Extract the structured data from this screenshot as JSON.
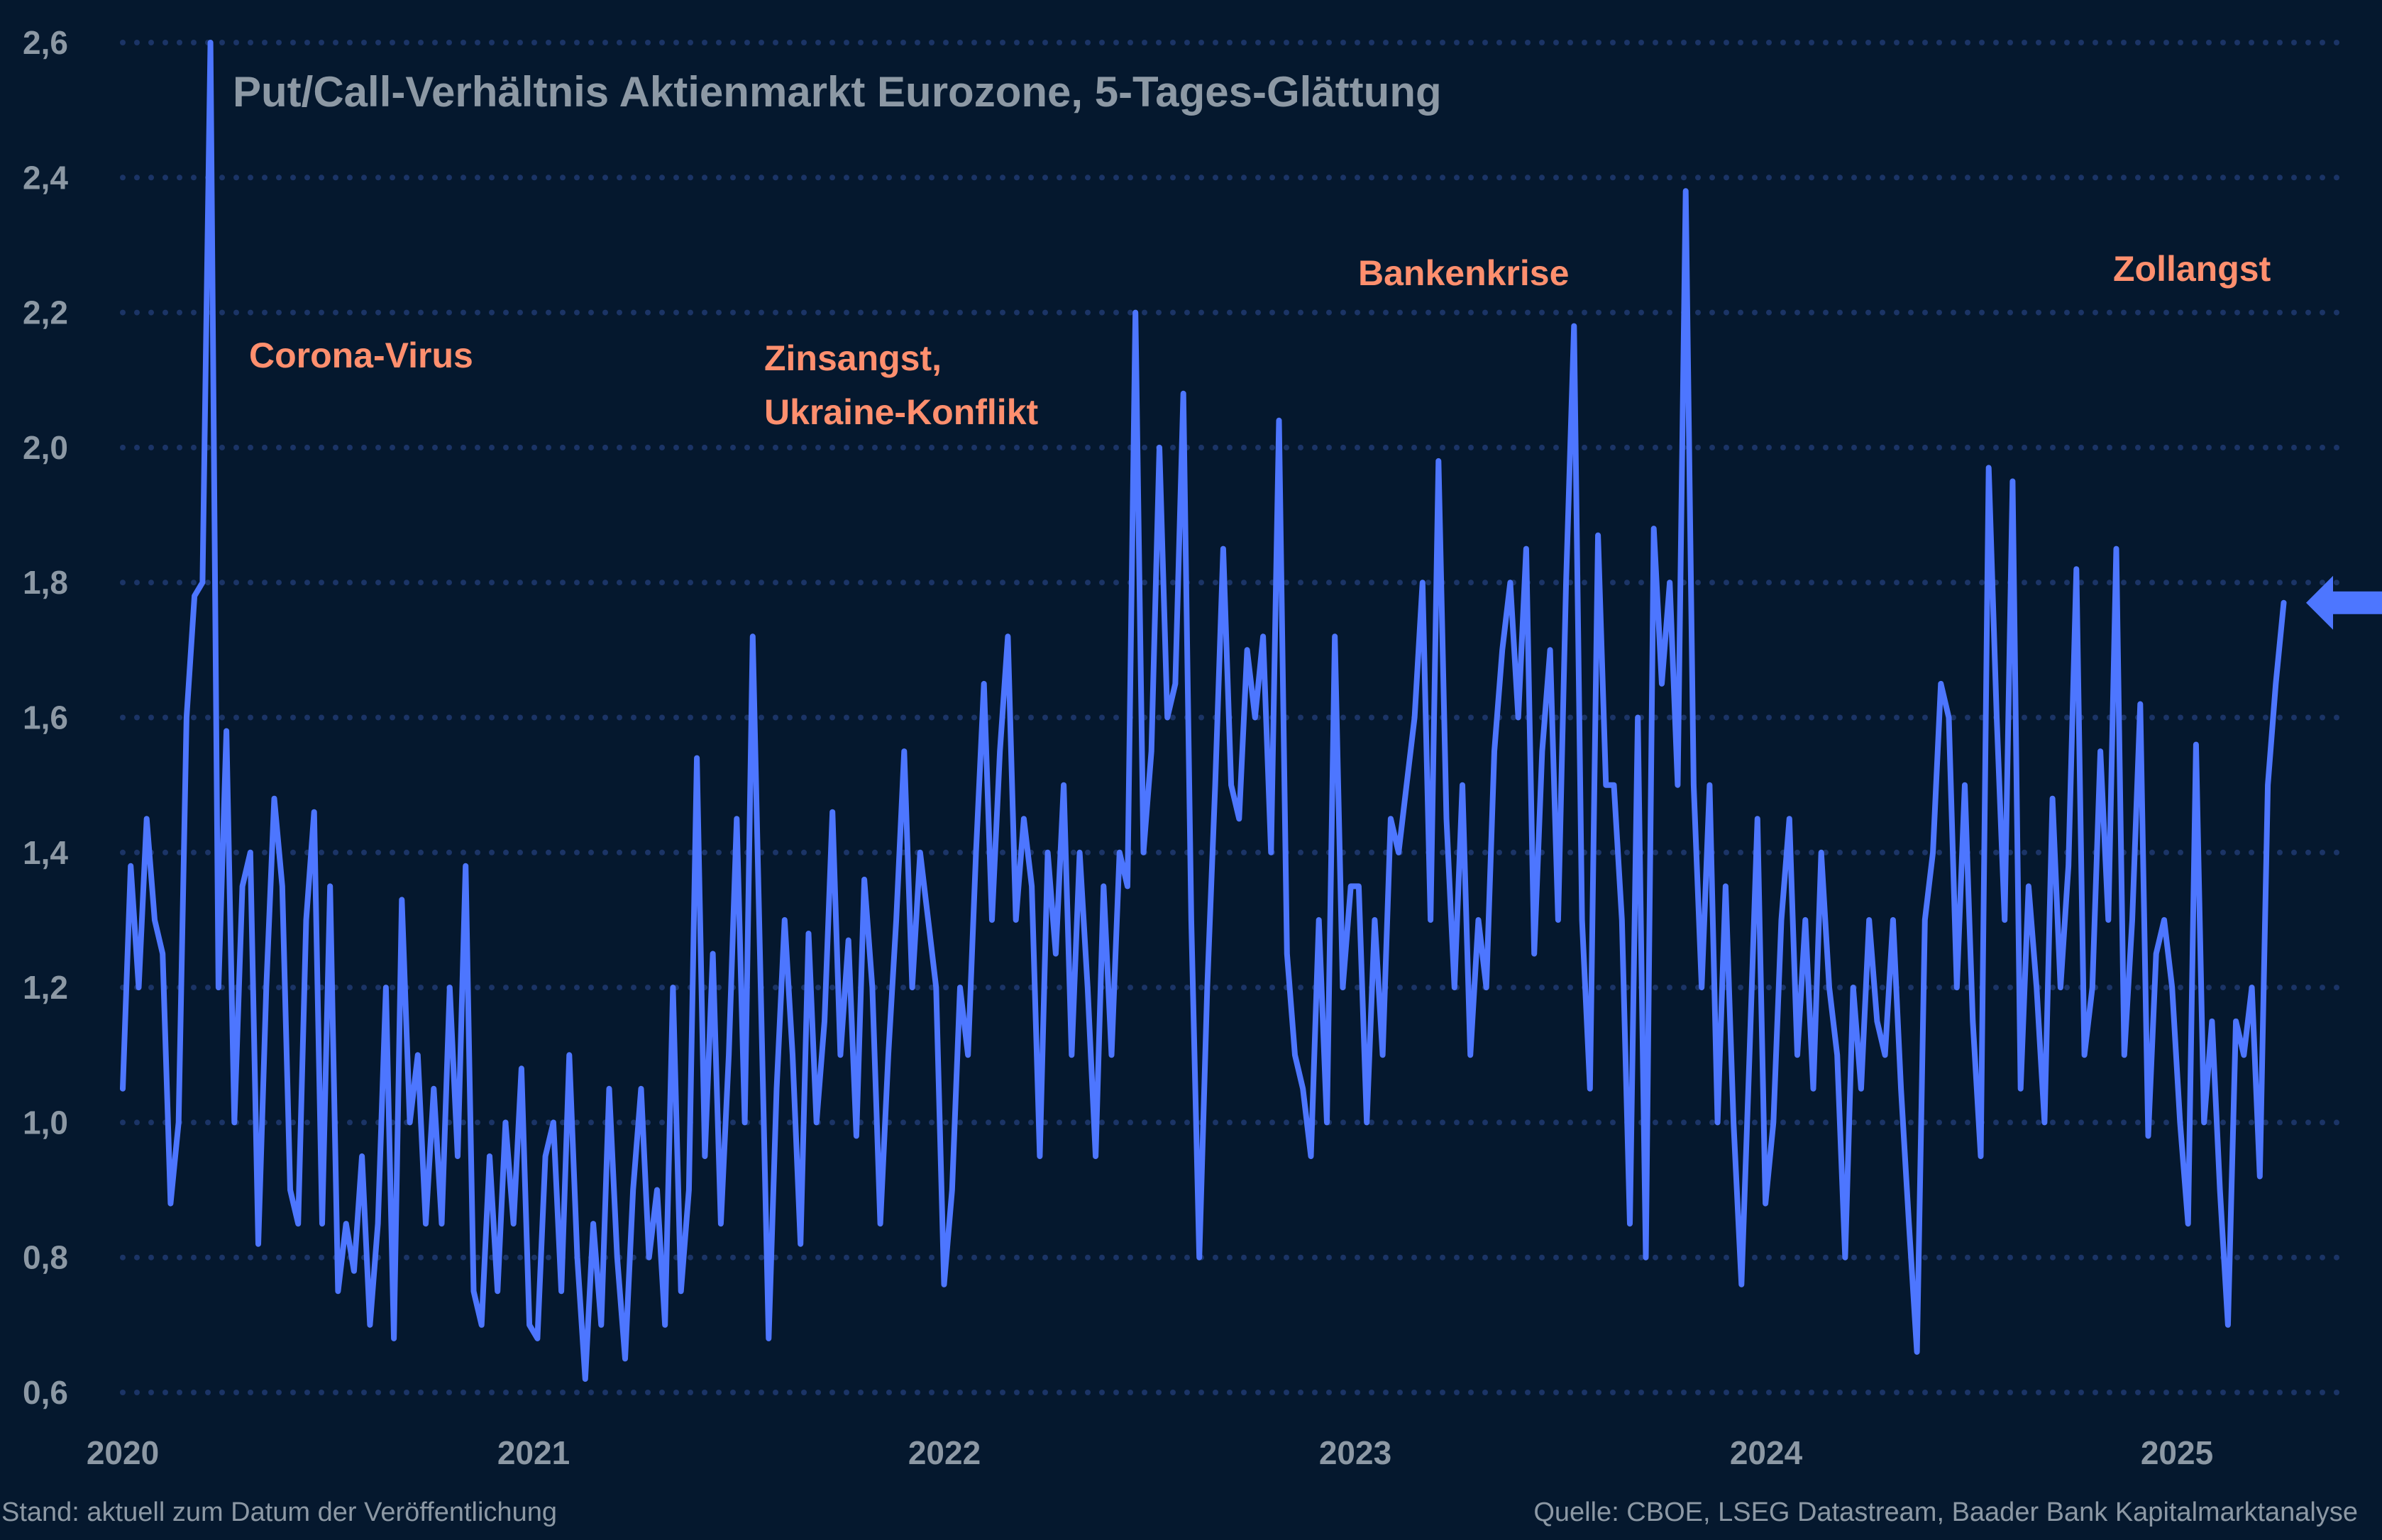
{
  "colors": {
    "background": "#05182e",
    "line": "#4d76ff",
    "grid": "#1b3466",
    "text": "#8c98a4",
    "annotation": "#ff8f6e"
  },
  "chart_data": {
    "type": "line",
    "title": "Put/Call-Verhältnis Aktienmarkt Eurozone, 5-Tages-Glättung",
    "xlabel": "",
    "ylabel": "",
    "x_ticks": [
      "2020",
      "2021",
      "2022",
      "2023",
      "2024",
      "2025"
    ],
    "y_ticks": [
      "0,6",
      "0,8",
      "1,0",
      "1,2",
      "1,4",
      "1,6",
      "1,8",
      "2,0",
      "2,2",
      "2,4",
      "2,6"
    ],
    "ylim": [
      0.6,
      2.6
    ],
    "xlim": [
      2020.0,
      2025.6
    ],
    "grid": "horizontal-dotted",
    "x_range": [
      2020.0,
      2025.26
    ],
    "sampling": "weekly",
    "values": [
      1.05,
      1.38,
      1.2,
      1.45,
      1.3,
      1.25,
      0.88,
      1.0,
      1.6,
      1.78,
      1.8,
      2.6,
      1.2,
      1.58,
      1.0,
      1.35,
      1.4,
      0.82,
      1.2,
      1.48,
      1.35,
      0.9,
      0.85,
      1.3,
      1.46,
      0.85,
      1.35,
      0.75,
      0.85,
      0.78,
      0.95,
      0.7,
      0.85,
      1.2,
      0.68,
      1.33,
      1.0,
      1.1,
      0.85,
      1.05,
      0.85,
      1.2,
      0.95,
      1.38,
      0.75,
      0.7,
      0.95,
      0.75,
      1.0,
      0.85,
      1.08,
      0.7,
      0.68,
      0.95,
      1.0,
      0.75,
      1.1,
      0.8,
      0.62,
      0.85,
      0.7,
      1.05,
      0.8,
      0.65,
      0.9,
      1.05,
      0.8,
      0.9,
      0.7,
      1.2,
      0.75,
      0.9,
      1.54,
      0.95,
      1.25,
      0.85,
      1.1,
      1.45,
      1.0,
      1.72,
      1.2,
      0.68,
      1.05,
      1.3,
      1.1,
      0.82,
      1.28,
      1.0,
      1.15,
      1.46,
      1.1,
      1.27,
      0.98,
      1.36,
      1.2,
      0.85,
      1.1,
      1.3,
      1.55,
      1.2,
      1.4,
      1.3,
      1.2,
      0.76,
      0.9,
      1.2,
      1.1,
      1.4,
      1.65,
      1.3,
      1.55,
      1.72,
      1.3,
      1.45,
      1.35,
      0.95,
      1.4,
      1.25,
      1.5,
      1.1,
      1.4,
      1.2,
      0.95,
      1.35,
      1.1,
      1.4,
      1.35,
      2.2,
      1.4,
      1.55,
      2.0,
      1.6,
      1.65,
      2.08,
      1.3,
      0.8,
      1.2,
      1.5,
      1.85,
      1.5,
      1.45,
      1.7,
      1.6,
      1.72,
      1.4,
      2.04,
      1.25,
      1.1,
      1.05,
      0.95,
      1.3,
      1.0,
      1.72,
      1.2,
      1.35,
      1.35,
      1.0,
      1.3,
      1.1,
      1.45,
      1.4,
      1.5,
      1.6,
      1.8,
      1.3,
      1.98,
      1.45,
      1.2,
      1.5,
      1.1,
      1.3,
      1.2,
      1.55,
      1.7,
      1.8,
      1.6,
      1.85,
      1.25,
      1.55,
      1.7,
      1.3,
      1.8,
      2.18,
      1.3,
      1.05,
      1.87,
      1.5,
      1.5,
      1.3,
      0.85,
      1.6,
      0.8,
      1.88,
      1.65,
      1.8,
      1.5,
      2.38,
      1.5,
      1.2,
      1.5,
      1.0,
      1.35,
      1.0,
      0.76,
      1.1,
      1.45,
      0.88,
      1.0,
      1.3,
      1.45,
      1.1,
      1.3,
      1.05,
      1.4,
      1.2,
      1.1,
      0.8,
      1.2,
      1.05,
      1.3,
      1.15,
      1.1,
      1.3,
      1.05,
      0.85,
      0.66,
      1.3,
      1.4,
      1.65,
      1.6,
      1.2,
      1.5,
      1.15,
      0.95,
      1.97,
      1.6,
      1.3,
      1.95,
      1.05,
      1.35,
      1.2,
      1.0,
      1.48,
      1.2,
      1.38,
      1.82,
      1.1,
      1.2,
      1.55,
      1.3,
      1.85,
      1.1,
      1.3,
      1.62,
      0.98,
      1.25,
      1.3,
      1.2,
      1.0,
      0.85,
      1.56,
      1.0,
      1.15,
      0.9,
      0.7,
      1.15,
      1.1,
      1.2,
      0.92,
      1.5,
      1.65,
      1.77
    ],
    "annotations": [
      {
        "text": "Corona-Virus"
      },
      {
        "text": "Zinsangst,"
      },
      {
        "text": "Ukraine-Konflikt"
      },
      {
        "text": "Bankenkrise"
      },
      {
        "text": "Zollangst"
      }
    ],
    "marker": {
      "type": "arrow-left",
      "points_to": 1.77
    }
  },
  "footer": {
    "left": "Stand: aktuell zum Datum der Veröffentlichung",
    "right": "Quelle: CBOE, LSEG Datastream, Baader Bank Kapitalmarktanalyse"
  }
}
